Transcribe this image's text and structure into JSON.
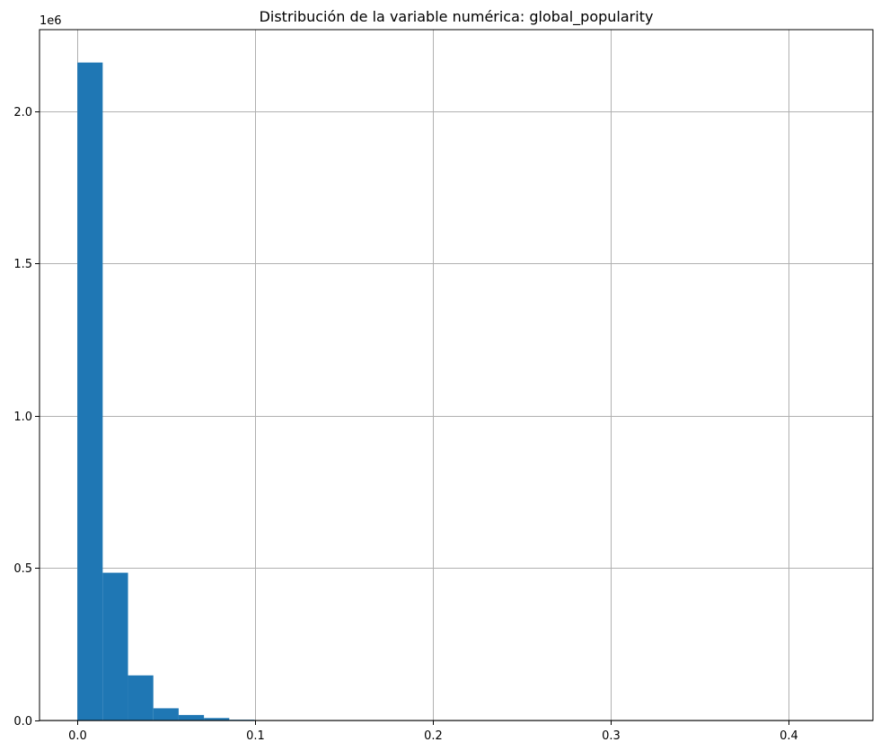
{
  "chart_data": {
    "type": "bar",
    "title": "Distribución de la variable numérica: global_popularity",
    "xlabel": "",
    "ylabel": "",
    "offset_label": "1e6",
    "xlim": [
      -0.0213,
      0.4475
    ],
    "ylim": [
      0,
      2268000
    ],
    "x_ticks": [
      0.0,
      0.1,
      0.2,
      0.3,
      0.4
    ],
    "x_tick_labels": [
      "0.0",
      "0.1",
      "0.2",
      "0.3",
      "0.4"
    ],
    "y_ticks": [
      0,
      500000,
      1000000,
      1500000,
      2000000
    ],
    "y_tick_labels": [
      "0.0",
      "0.5",
      "1.0",
      "1.5",
      "2.0"
    ],
    "grid": true,
    "color": "#1f77b4",
    "bin_edges": [
      0.0,
      0.01424,
      0.02848,
      0.04272,
      0.05696,
      0.0712,
      0.08544,
      0.09968,
      0.11392,
      0.12816,
      0.1424,
      0.15664,
      0.17088,
      0.18512,
      0.19936,
      0.2136,
      0.22784,
      0.24208,
      0.25632,
      0.27056,
      0.2848,
      0.29904,
      0.31328,
      0.32752,
      0.34176,
      0.356,
      0.37024,
      0.38448,
      0.39872,
      0.41296,
      0.4272
    ],
    "values": [
      2160000,
      485000,
      148000,
      40000,
      18000,
      8000,
      2500,
      1000,
      500,
      300,
      200,
      150,
      100,
      80,
      60,
      50,
      40,
      30,
      25,
      20,
      15,
      10,
      10,
      8,
      6,
      5,
      4,
      3,
      2,
      1
    ]
  }
}
